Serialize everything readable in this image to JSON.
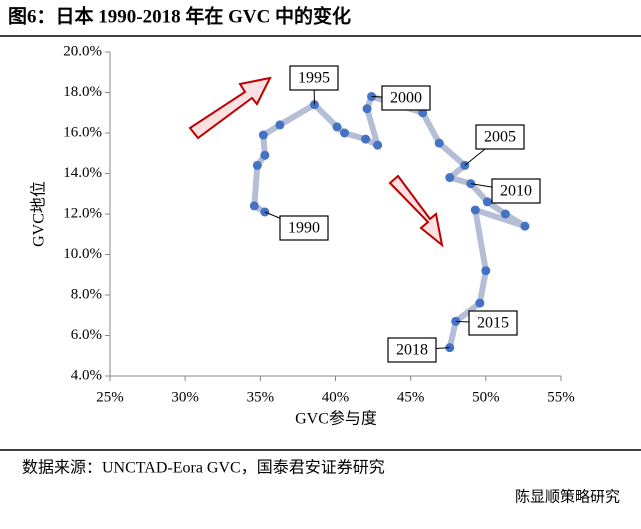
{
  "chart_data": {
    "type": "line",
    "title": "图6：日本 1990-2018 年在 GVC 中的变化",
    "x_label": "GVC参与度",
    "y_label": "GVC地位",
    "source": "数据来源：UNCTAD-Eora GVC，国泰君安证券研究",
    "watermark": "陈显顺策略研究",
    "xlim": [
      25,
      55
    ],
    "xticks": [
      {
        "value": 25,
        "label": "25%"
      },
      {
        "value": 30,
        "label": "30%"
      },
      {
        "value": 35,
        "label": "35%"
      },
      {
        "value": 40,
        "label": "40%"
      },
      {
        "value": 45,
        "label": "45%"
      },
      {
        "value": 50,
        "label": "50%"
      },
      {
        "value": 55,
        "label": "55%"
      }
    ],
    "ylim": [
      4,
      20
    ],
    "yticks": [
      {
        "value": 4,
        "label": "4.0%"
      },
      {
        "value": 6,
        "label": "6.0%"
      },
      {
        "value": 8,
        "label": "8.0%"
      },
      {
        "value": 10,
        "label": "10.0%"
      },
      {
        "value": 12,
        "label": "12.0%"
      },
      {
        "value": 14,
        "label": "14.0%"
      },
      {
        "value": 16,
        "label": "16.0%"
      },
      {
        "value": 18,
        "label": "18.0%"
      },
      {
        "value": 20,
        "label": "20.0%"
      }
    ],
    "series": [
      {
        "color": "#4472c4",
        "x": [
          35.3,
          34.6,
          34.8,
          35.3,
          35.2,
          36.3,
          38.6,
          40.1,
          40.6,
          42.0,
          42.8,
          42.1,
          42.4,
          45.8,
          46.9,
          48.6,
          47.6,
          49.0,
          50.1,
          51.3,
          52.6,
          49.3,
          50.0,
          49.6,
          48.0,
          47.6
        ],
        "values": [
          12.1,
          12.4,
          14.4,
          14.9,
          15.9,
          16.4,
          17.4,
          16.3,
          16.0,
          15.7,
          15.4,
          17.2,
          17.8,
          17.0,
          15.5,
          14.4,
          13.8,
          13.5,
          12.6,
          12.0,
          11.4,
          12.2,
          9.2,
          7.6,
          6.7,
          5.4
        ],
        "labels": [
          "1990",
          null,
          null,
          null,
          null,
          null,
          "1995",
          null,
          null,
          null,
          null,
          null,
          "2000",
          null,
          null,
          "2005",
          null,
          "2010",
          null,
          null,
          null,
          null,
          null,
          null,
          "2015",
          "2018"
        ]
      }
    ]
  }
}
